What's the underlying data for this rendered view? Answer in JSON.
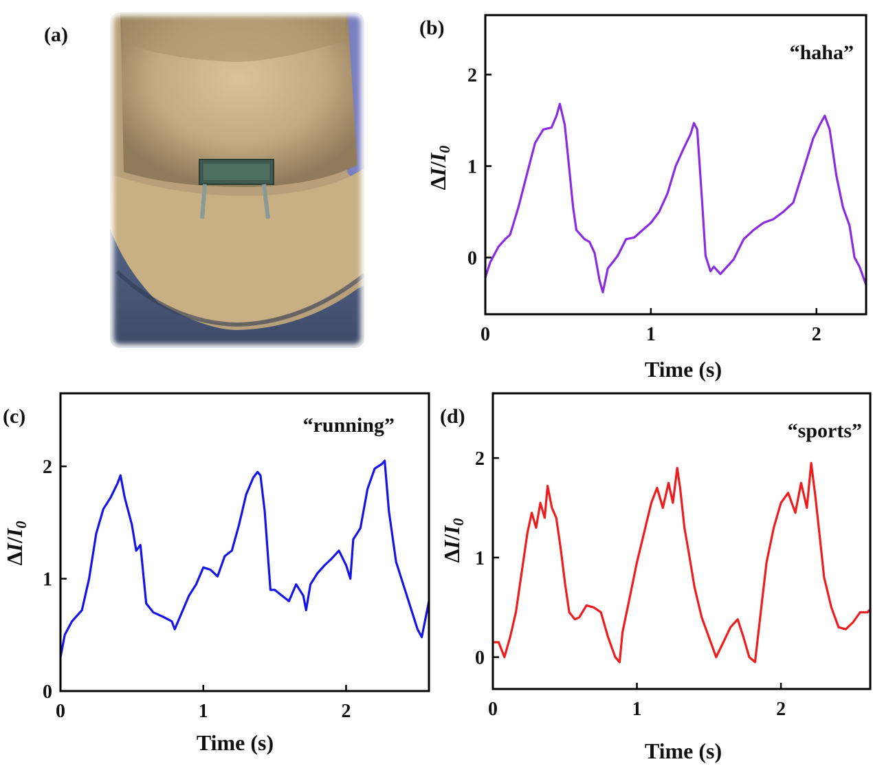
{
  "panels": {
    "a": {
      "label": "(a)"
    },
    "b": {
      "label": "(b)"
    },
    "c": {
      "label": "(c)"
    },
    "d": {
      "label": "(d)"
    }
  },
  "photo": {
    "icon": "neck-sensor-photo"
  },
  "chart_data": [
    {
      "panel": "b",
      "type": "line",
      "annotation": "“haha”",
      "xlabel": "Time (s)",
      "ylabel": "ΔI/I0",
      "xlim": [
        0,
        2.3
      ],
      "ylim": [
        -0.62,
        2.65
      ],
      "xticks": [
        0,
        1,
        2
      ],
      "yticks": [
        0,
        1,
        2
      ],
      "color": "#8a2be2",
      "x": [
        0.0,
        0.03,
        0.08,
        0.12,
        0.15,
        0.2,
        0.25,
        0.3,
        0.35,
        0.4,
        0.43,
        0.45,
        0.48,
        0.5,
        0.53,
        0.55,
        0.6,
        0.63,
        0.66,
        0.69,
        0.71,
        0.74,
        0.8,
        0.85,
        0.9,
        0.95,
        1.0,
        1.05,
        1.1,
        1.15,
        1.2,
        1.24,
        1.26,
        1.28,
        1.31,
        1.33,
        1.36,
        1.38,
        1.42,
        1.5,
        1.56,
        1.62,
        1.68,
        1.74,
        1.8,
        1.86,
        1.92,
        1.98,
        2.02,
        2.05,
        2.08,
        2.12,
        2.16,
        2.2,
        2.23,
        2.26,
        2.3
      ],
      "values": [
        -0.22,
        -0.05,
        0.12,
        0.2,
        0.25,
        0.55,
        0.9,
        1.25,
        1.4,
        1.42,
        1.55,
        1.68,
        1.45,
        1.1,
        0.55,
        0.3,
        0.2,
        0.17,
        0.05,
        -0.25,
        -0.38,
        -0.12,
        0.02,
        0.2,
        0.22,
        0.3,
        0.38,
        0.5,
        0.7,
        1.0,
        1.2,
        1.35,
        1.47,
        1.4,
        0.6,
        0.02,
        -0.15,
        -0.1,
        -0.18,
        -0.02,
        0.2,
        0.3,
        0.38,
        0.42,
        0.5,
        0.6,
        0.95,
        1.3,
        1.45,
        1.55,
        1.4,
        0.9,
        0.55,
        0.35,
        0.0,
        -0.1,
        -0.3
      ]
    },
    {
      "panel": "c",
      "type": "line",
      "annotation": "“running”",
      "xlabel": "Time (s)",
      "ylabel": "ΔI/I0",
      "xlim": [
        0,
        2.58
      ],
      "ylim": [
        0,
        2.65
      ],
      "xticks": [
        0,
        1,
        2
      ],
      "yticks": [
        0,
        1,
        2
      ],
      "color": "#1414e6",
      "x": [
        0.0,
        0.03,
        0.08,
        0.15,
        0.2,
        0.25,
        0.3,
        0.35,
        0.4,
        0.42,
        0.45,
        0.5,
        0.53,
        0.56,
        0.6,
        0.65,
        0.72,
        0.78,
        0.8,
        0.85,
        0.9,
        0.95,
        1.0,
        1.05,
        1.1,
        1.15,
        1.2,
        1.25,
        1.3,
        1.35,
        1.38,
        1.4,
        1.43,
        1.47,
        1.5,
        1.55,
        1.6,
        1.65,
        1.7,
        1.72,
        1.75,
        1.8,
        1.85,
        1.9,
        1.95,
        2.0,
        2.03,
        2.05,
        2.1,
        2.15,
        2.2,
        2.25,
        2.27,
        2.3,
        2.35,
        2.4,
        2.45,
        2.5,
        2.53,
        2.58
      ],
      "values": [
        0.3,
        0.5,
        0.62,
        0.72,
        1.0,
        1.4,
        1.62,
        1.72,
        1.85,
        1.92,
        1.72,
        1.48,
        1.25,
        1.3,
        0.78,
        0.7,
        0.66,
        0.62,
        0.55,
        0.7,
        0.85,
        0.95,
        1.1,
        1.08,
        1.02,
        1.2,
        1.25,
        1.48,
        1.75,
        1.9,
        1.95,
        1.92,
        1.6,
        0.9,
        0.9,
        0.85,
        0.8,
        0.95,
        0.85,
        0.72,
        0.95,
        1.05,
        1.12,
        1.18,
        1.25,
        1.12,
        1.0,
        1.35,
        1.45,
        1.8,
        1.98,
        2.02,
        2.05,
        1.6,
        1.15,
        0.95,
        0.75,
        0.55,
        0.48,
        0.8
      ]
    },
    {
      "panel": "d",
      "type": "line",
      "annotation": "“sports”",
      "xlabel": "Time (s)",
      "ylabel": "ΔI/I0",
      "xlim": [
        0,
        2.62
      ],
      "ylim": [
        -0.32,
        2.65
      ],
      "xticks": [
        0,
        1,
        2
      ],
      "yticks": [
        0,
        1,
        2
      ],
      "color": "#ee1c1c",
      "x": [
        0.0,
        0.04,
        0.08,
        0.12,
        0.16,
        0.2,
        0.24,
        0.27,
        0.3,
        0.33,
        0.36,
        0.38,
        0.41,
        0.44,
        0.47,
        0.5,
        0.53,
        0.57,
        0.6,
        0.65,
        0.7,
        0.75,
        0.8,
        0.85,
        0.88,
        0.9,
        0.95,
        1.0,
        1.05,
        1.1,
        1.14,
        1.18,
        1.22,
        1.25,
        1.28,
        1.3,
        1.33,
        1.36,
        1.4,
        1.45,
        1.5,
        1.55,
        1.6,
        1.65,
        1.7,
        1.74,
        1.78,
        1.82,
        1.86,
        1.9,
        1.95,
        2.0,
        2.05,
        2.1,
        2.14,
        2.18,
        2.21,
        2.24,
        2.27,
        2.3,
        2.35,
        2.4,
        2.45,
        2.5,
        2.55,
        2.6,
        2.62
      ],
      "values": [
        0.15,
        0.15,
        0.0,
        0.2,
        0.45,
        0.85,
        1.25,
        1.45,
        1.3,
        1.55,
        1.4,
        1.72,
        1.5,
        1.4,
        1.1,
        0.75,
        0.45,
        0.38,
        0.4,
        0.52,
        0.5,
        0.45,
        0.2,
        0.0,
        -0.05,
        0.25,
        0.6,
        0.95,
        1.25,
        1.55,
        1.7,
        1.5,
        1.75,
        1.55,
        1.9,
        1.7,
        1.3,
        1.05,
        0.7,
        0.4,
        0.2,
        0.0,
        0.15,
        0.3,
        0.38,
        0.2,
        0.0,
        -0.05,
        0.45,
        0.95,
        1.3,
        1.55,
        1.65,
        1.45,
        1.75,
        1.5,
        1.95,
        1.6,
        1.2,
        0.8,
        0.5,
        0.3,
        0.28,
        0.35,
        0.45,
        0.45,
        0.48
      ]
    }
  ]
}
